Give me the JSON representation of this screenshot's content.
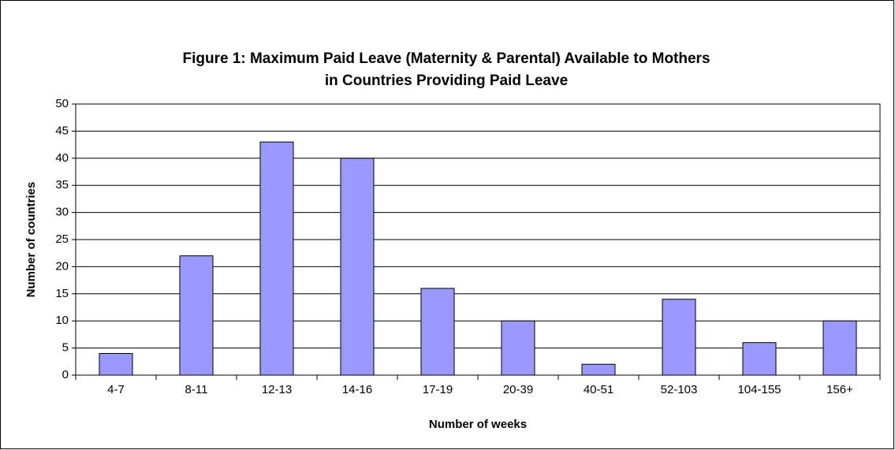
{
  "chart_data": {
    "type": "bar",
    "title": [
      "Figure 1: Maximum Paid Leave (Maternity & Parental) Available to Mothers",
      "in Countries Providing Paid Leave"
    ],
    "x_label": "Number of weeks",
    "y_label": "Number of countries",
    "categories": [
      "4-7",
      "8-11",
      "12-13",
      "14-16",
      "17-19",
      "20-39",
      "40-51",
      "52-103",
      "104-155",
      "156+"
    ],
    "values": [
      4,
      22,
      43,
      40,
      16,
      10,
      2,
      14,
      6,
      10
    ],
    "color": "#9999ff",
    "ylim": [
      0,
      50
    ],
    "yticks": [
      0,
      5,
      10,
      15,
      20,
      25,
      30,
      35,
      40,
      45,
      50
    ],
    "grid": true
  }
}
